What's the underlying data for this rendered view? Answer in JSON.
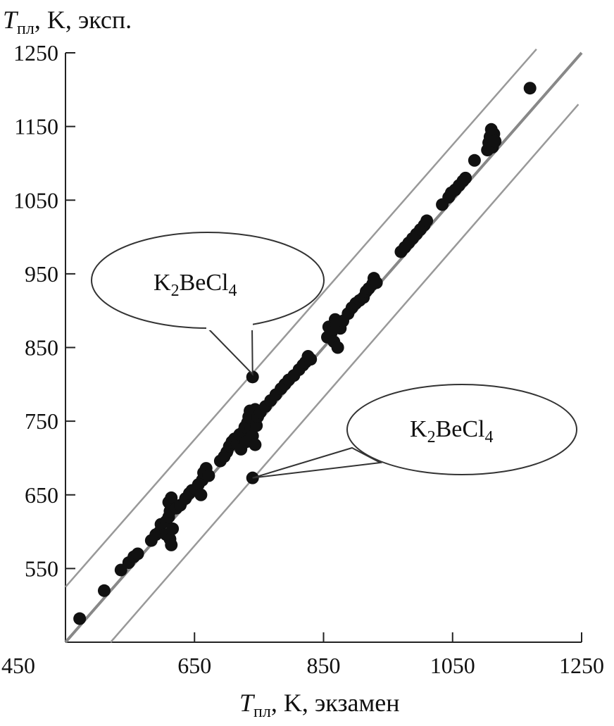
{
  "chart_data": {
    "type": "scatter",
    "ylabel": {
      "T": "T",
      "sub": "пл",
      "rest": ", K, эксп."
    },
    "xlabel": {
      "T": "T",
      "sub": "пл",
      "rest": ", K, экзамен"
    },
    "xlim": [
      450,
      1250
    ],
    "ylim": [
      450,
      1250
    ],
    "x_ticks": [
      450,
      650,
      850,
      1050,
      1250
    ],
    "y_ticks": [
      550,
      650,
      750,
      850,
      950,
      1050,
      1150,
      1250
    ],
    "lines": [
      {
        "name": "",
        "points": [
          [
            450,
            450
          ],
          [
            1250,
            1250
          ]
        ],
        "color": "#888888"
      },
      {
        "name": "",
        "points": [
          [
            450,
            525
          ],
          [
            1180,
            1255
          ]
        ],
        "color": "#999999"
      },
      {
        "name": "",
        "points": [
          [
            520,
            450
          ],
          [
            1245,
            1180
          ]
        ],
        "color": "#999999"
      }
    ],
    "points": [
      [
        472,
        482
      ],
      [
        510,
        520
      ],
      [
        536,
        548
      ],
      [
        548,
        558
      ],
      [
        556,
        566
      ],
      [
        562,
        570
      ],
      [
        583,
        588
      ],
      [
        590,
        596
      ],
      [
        596,
        600
      ],
      [
        598,
        610
      ],
      [
        606,
        614
      ],
      [
        610,
        620
      ],
      [
        612,
        628
      ],
      [
        606,
        596
      ],
      [
        612,
        590
      ],
      [
        614,
        582
      ],
      [
        616,
        604
      ],
      [
        610,
        640
      ],
      [
        614,
        646
      ],
      [
        622,
        632
      ],
      [
        628,
        636
      ],
      [
        636,
        645
      ],
      [
        642,
        652
      ],
      [
        646,
        656
      ],
      [
        652,
        658
      ],
      [
        656,
        664
      ],
      [
        660,
        650
      ],
      [
        662,
        670
      ],
      [
        664,
        680
      ],
      [
        668,
        686
      ],
      [
        672,
        676
      ],
      [
        690,
        696
      ],
      [
        696,
        702
      ],
      [
        700,
        708
      ],
      [
        704,
        716
      ],
      [
        708,
        722
      ],
      [
        712,
        726
      ],
      [
        716,
        720
      ],
      [
        720,
        732
      ],
      [
        722,
        712
      ],
      [
        726,
        736
      ],
      [
        728,
        742
      ],
      [
        730,
        722
      ],
      [
        732,
        748
      ],
      [
        734,
        756
      ],
      [
        736,
        764
      ],
      [
        738,
        740
      ],
      [
        740,
        752
      ],
      [
        742,
        760
      ],
      [
        744,
        766
      ],
      [
        746,
        744
      ],
      [
        748,
        756
      ],
      [
        752,
        762
      ],
      [
        740,
        730
      ],
      [
        744,
        718
      ],
      [
        760,
        770
      ],
      [
        768,
        778
      ],
      [
        776,
        786
      ],
      [
        784,
        794
      ],
      [
        790,
        800
      ],
      [
        796,
        806
      ],
      [
        804,
        812
      ],
      [
        812,
        820
      ],
      [
        818,
        826
      ],
      [
        822,
        830
      ],
      [
        826,
        838
      ],
      [
        830,
        834
      ],
      [
        856,
        864
      ],
      [
        858,
        878
      ],
      [
        862,
        870
      ],
      [
        866,
        858
      ],
      [
        868,
        888
      ],
      [
        870,
        882
      ],
      [
        872,
        850
      ],
      [
        876,
        876
      ],
      [
        880,
        886
      ],
      [
        888,
        896
      ],
      [
        894,
        904
      ],
      [
        900,
        910
      ],
      [
        906,
        914
      ],
      [
        912,
        918
      ],
      [
        916,
        926
      ],
      [
        920,
        930
      ],
      [
        926,
        936
      ],
      [
        928,
        944
      ],
      [
        932,
        938
      ],
      [
        970,
        980
      ],
      [
        976,
        986
      ],
      [
        982,
        992
      ],
      [
        988,
        998
      ],
      [
        994,
        1004
      ],
      [
        1000,
        1010
      ],
      [
        1006,
        1016
      ],
      [
        1010,
        1022
      ],
      [
        1034,
        1044
      ],
      [
        1044,
        1054
      ],
      [
        1048,
        1060
      ],
      [
        1054,
        1064
      ],
      [
        1060,
        1070
      ],
      [
        1066,
        1076
      ],
      [
        1070,
        1080
      ],
      [
        1084,
        1104
      ],
      [
        1104,
        1118
      ],
      [
        1106,
        1128
      ],
      [
        1108,
        1136
      ],
      [
        1110,
        1146
      ],
      [
        1112,
        1122
      ],
      [
        1114,
        1140
      ],
      [
        1116,
        1130
      ],
      [
        1170,
        1202
      ],
      [
        740,
        810
      ],
      [
        740,
        673
      ]
    ],
    "annotations": [
      {
        "text": {
          "main": "K",
          "s1": "2",
          "mid": "BeCl",
          "s2": "4"
        },
        "target": [
          740,
          810
        ]
      },
      {
        "text": {
          "main": "K",
          "s1": "2",
          "mid": "BeCl",
          "s2": "4"
        },
        "target": [
          740,
          673
        ]
      }
    ],
    "colors": {
      "points": "#111111",
      "axis": "#222222",
      "callout_fill": "#ffffff"
    }
  }
}
